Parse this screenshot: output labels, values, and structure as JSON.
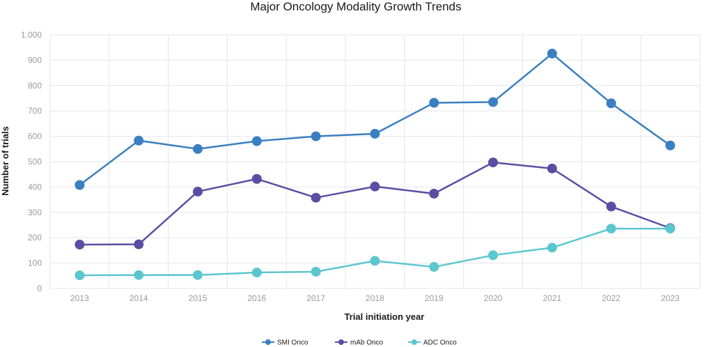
{
  "chart_data": {
    "type": "line",
    "title": "Major Oncology Modality Growth Trends",
    "xlabel": "Trial initiation year",
    "ylabel": "Number of trials",
    "categories": [
      "2013",
      "2014",
      "2015",
      "2016",
      "2017",
      "2018",
      "2019",
      "2020",
      "2021",
      "2022",
      "2023"
    ],
    "ylim": [
      0,
      1000
    ],
    "yticks": [
      0,
      100,
      200,
      300,
      400,
      500,
      600,
      700,
      800,
      900,
      1000
    ],
    "ytick_labels": [
      "0",
      "100",
      "200",
      "300",
      "400",
      "500",
      "600",
      "700",
      "800",
      "900",
      "1.000"
    ],
    "grid": true,
    "legend_position": "bottom-center",
    "series": [
      {
        "name": "SMI Onco",
        "color": "#3a7fc1",
        "values": [
          408,
          583,
          550,
          581,
          600,
          610,
          732,
          735,
          926,
          730,
          564
        ]
      },
      {
        "name": "mAb Onco",
        "color": "#5a4ea3",
        "values": [
          173,
          174,
          382,
          432,
          358,
          402,
          374,
          497,
          473,
          323,
          238
        ]
      },
      {
        "name": "ADC Onco",
        "color": "#5cc6cf",
        "values": [
          52,
          53,
          53,
          63,
          66,
          109,
          85,
          131,
          161,
          236,
          236
        ]
      }
    ]
  }
}
